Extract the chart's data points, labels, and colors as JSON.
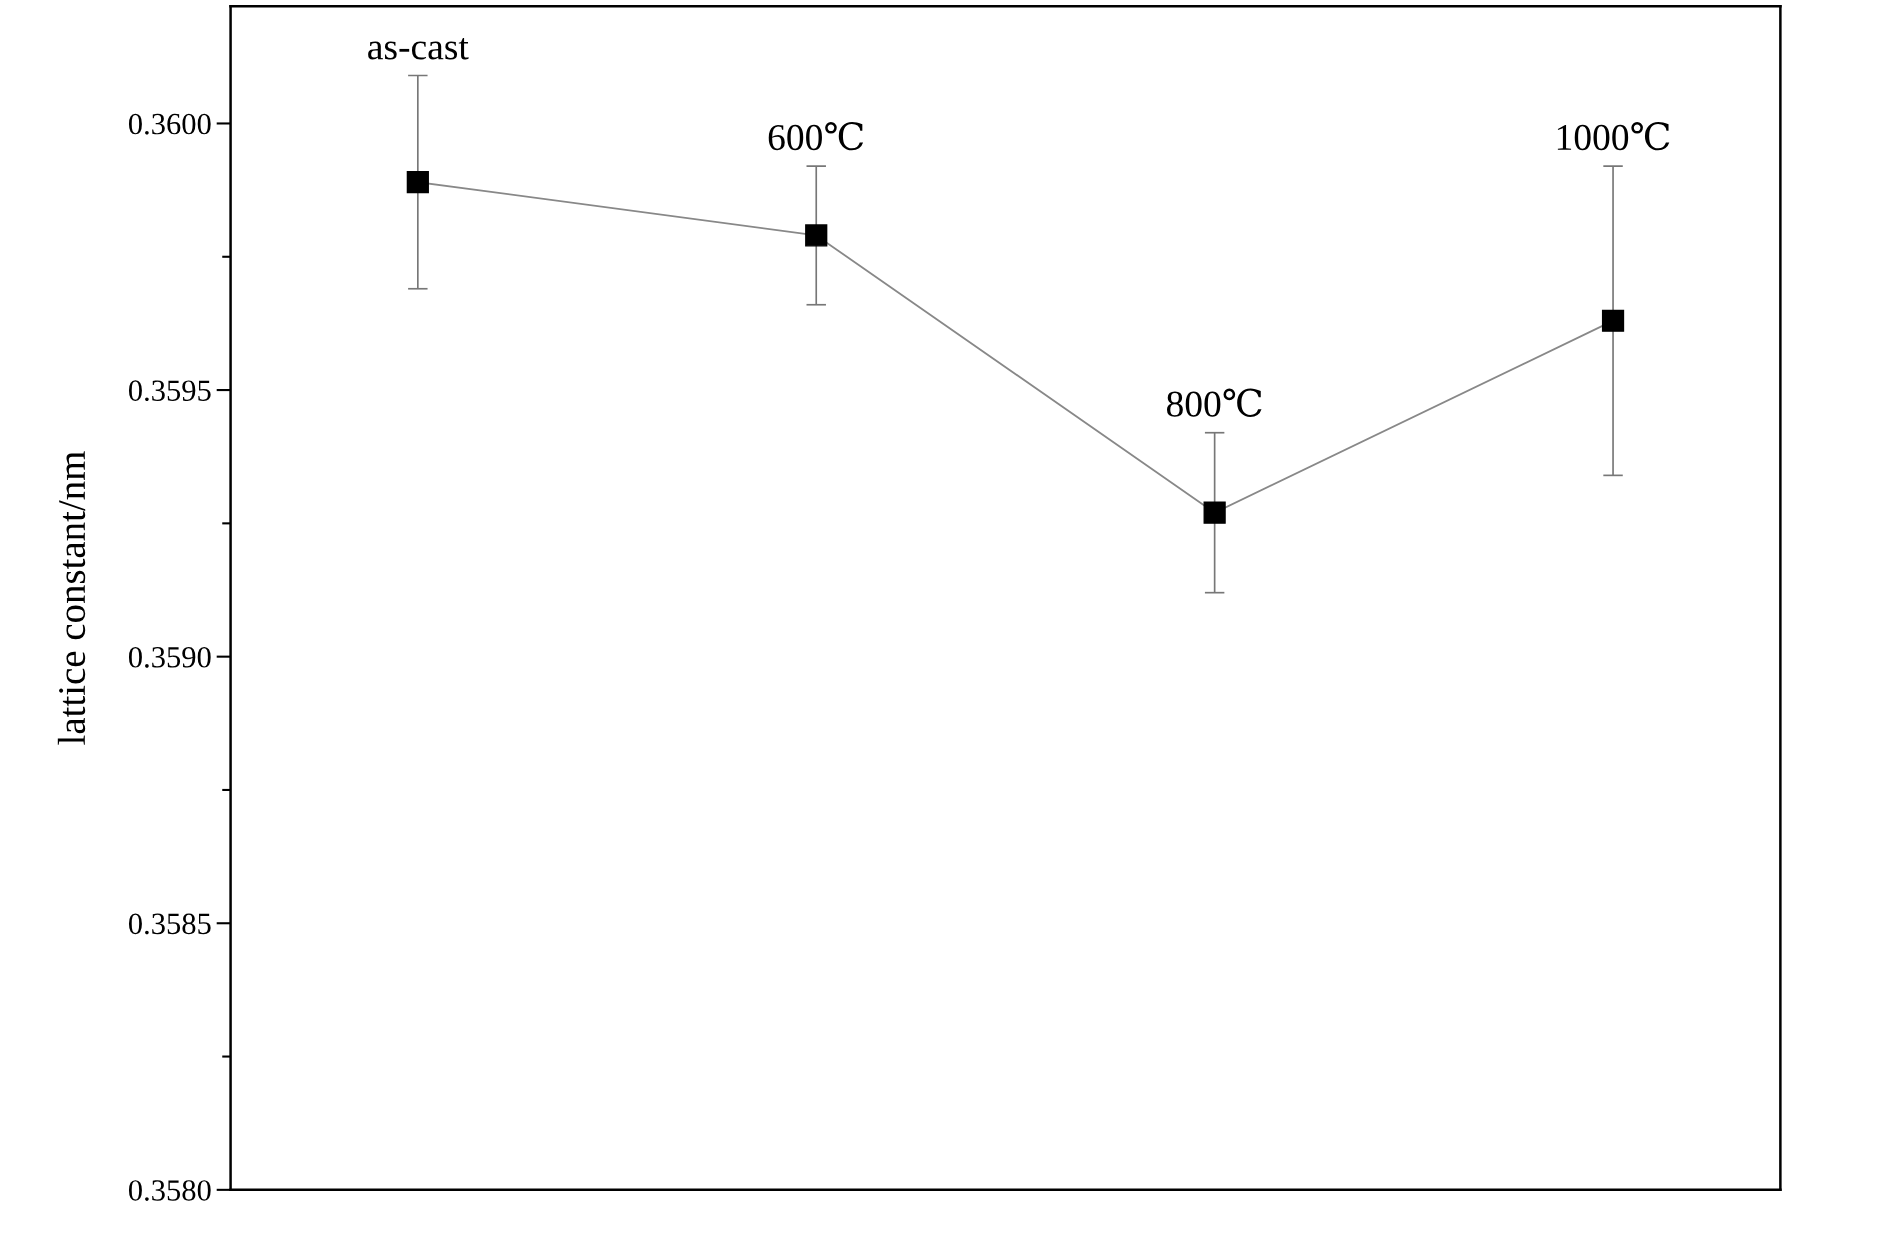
{
  "chart_data": {
    "type": "line",
    "ylabel": "lattice constant/nm",
    "categories": [
      "as-cast",
      "600℃",
      "800℃",
      "1000℃"
    ],
    "series": [
      {
        "color": "#000000",
        "values": [
          0.35989,
          0.35979,
          0.35927,
          0.35963
        ],
        "errors": [
          0.0002,
          0.00013,
          0.00015,
          0.00029
        ]
      }
    ],
    "ylim": [
      0.358,
      0.36022
    ],
    "yticks": [
      {
        "value": 0.358,
        "label": "0.3580"
      },
      {
        "value": 0.3585,
        "label": "0.3585"
      },
      {
        "value": 0.359,
        "label": "0.3590"
      },
      {
        "value": 0.3595,
        "label": "0.3595"
      },
      {
        "value": 0.36,
        "label": "0.3600"
      }
    ],
    "tick_labels": "y",
    "marker": "square",
    "line_style": "solid",
    "grid": false,
    "legend": false
  }
}
